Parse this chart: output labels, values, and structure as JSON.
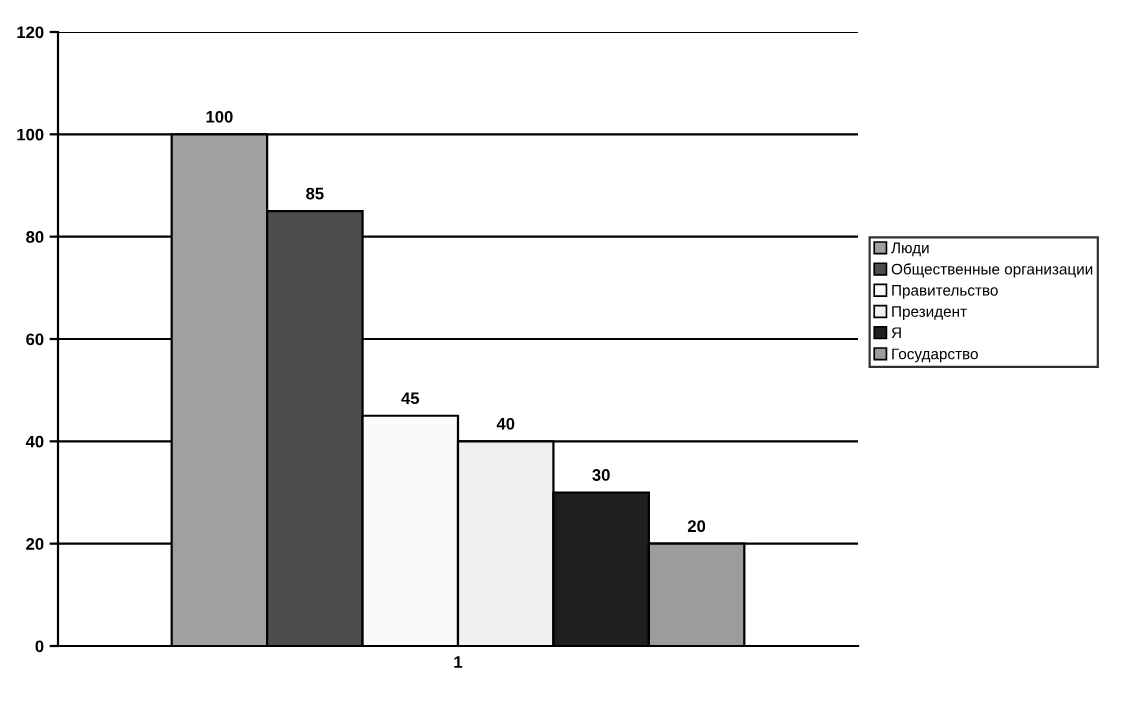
{
  "chart_data": {
    "type": "bar",
    "categories": [
      "1"
    ],
    "series": [
      {
        "name": "Люди",
        "color": "#a0a0a0",
        "values": [
          100
        ]
      },
      {
        "name": "Общественные организации",
        "color": "#4d4d4d",
        "values": [
          85
        ]
      },
      {
        "name": "Правительство",
        "color": "#fafafa",
        "values": [
          45
        ]
      },
      {
        "name": "Президент",
        "color": "#f0f0f0",
        "values": [
          40
        ]
      },
      {
        "name": "Я",
        "color": "#1f1f1f",
        "values": [
          30
        ]
      },
      {
        "name": "Государство",
        "color": "#9c9c9c",
        "values": [
          20
        ]
      }
    ],
    "ylim": [
      0,
      120
    ],
    "yticks": [
      0,
      20,
      40,
      60,
      80,
      100,
      120
    ],
    "grid": "y",
    "legend": "right",
    "data_labels": true
  }
}
